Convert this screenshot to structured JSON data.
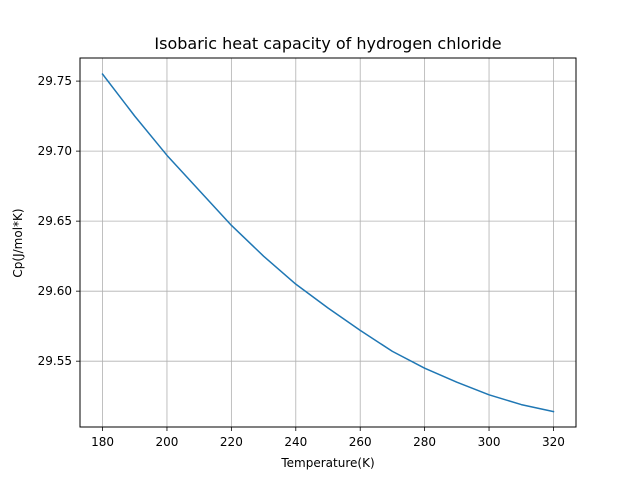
{
  "chart_data": {
    "type": "line",
    "title": "Isobaric heat capacity of hydrogen chloride",
    "xlabel": "Temperature(K)",
    "ylabel": "Cp(J/mol*K)",
    "xlim": [
      173,
      327
    ],
    "ylim": [
      29.503,
      29.7665
    ],
    "x_ticks": [
      180,
      200,
      220,
      240,
      260,
      280,
      300,
      320
    ],
    "y_ticks": [
      29.55,
      29.6,
      29.65,
      29.7,
      29.75
    ],
    "x_tick_labels": [
      "180",
      "200",
      "220",
      "240",
      "260",
      "280",
      "300",
      "320"
    ],
    "y_tick_labels": [
      "29.55",
      "29.60",
      "29.65",
      "29.70",
      "29.75"
    ],
    "grid": true,
    "series": [
      {
        "color": "#1f77b4",
        "x": [
          180,
          190,
          200,
          210,
          220,
          230,
          240,
          250,
          260,
          270,
          280,
          290,
          300,
          310,
          320
        ],
        "y": [
          29.755,
          29.725,
          29.697,
          29.672,
          29.647,
          29.625,
          29.605,
          29.588,
          29.572,
          29.557,
          29.545,
          29.535,
          29.526,
          29.519,
          29.514
        ]
      }
    ]
  }
}
